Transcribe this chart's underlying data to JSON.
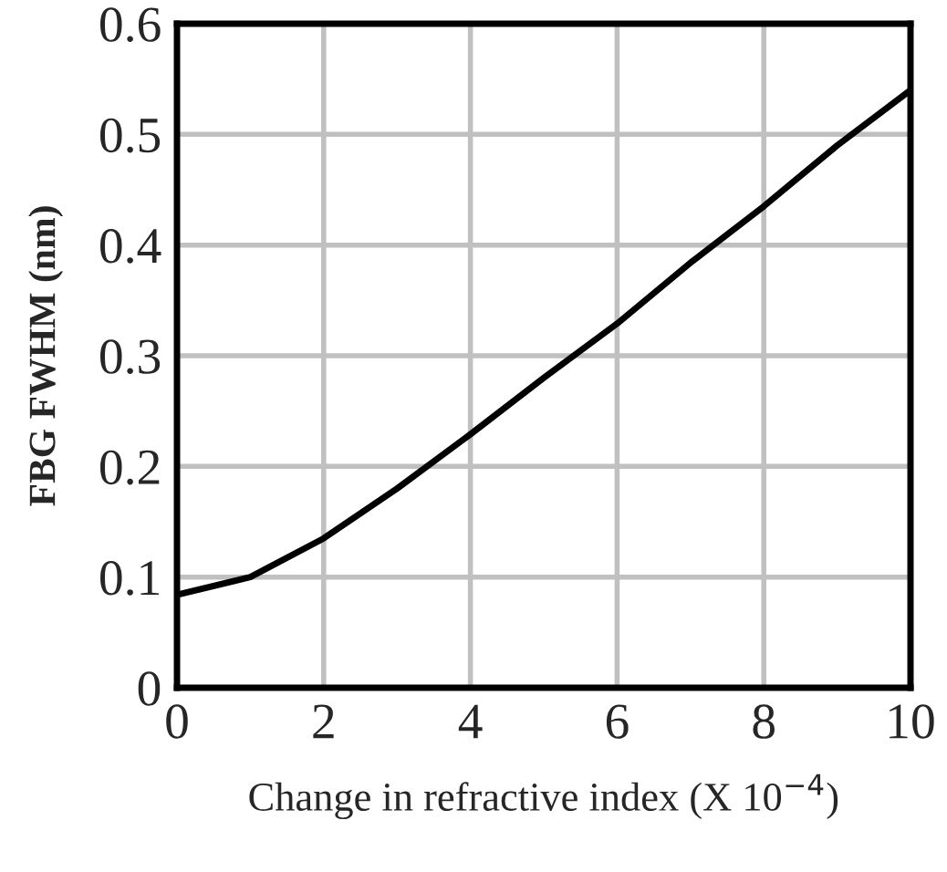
{
  "chart_data": {
    "type": "line",
    "xlabel": "Change in refractive index (X 10$^{−4}$)",
    "ylabel": "FBG FWHM (nm)",
    "x": [
      0,
      1,
      2,
      3,
      4,
      5,
      6,
      7,
      8,
      9,
      10
    ],
    "series": [
      {
        "color": "#000000",
        "values": [
          0.084,
          0.1,
          0.135,
          0.18,
          0.229,
          0.28,
          0.329,
          0.384,
          0.435,
          0.49,
          0.54
        ]
      }
    ],
    "xlim": [
      0,
      10
    ],
    "xticks": [
      0,
      2,
      4,
      6,
      8,
      10
    ],
    "ylim": [
      0,
      0.6
    ],
    "yticks": [
      0,
      0.1,
      0.2,
      0.3,
      0.4,
      0.5,
      0.6
    ],
    "grid": true
  }
}
